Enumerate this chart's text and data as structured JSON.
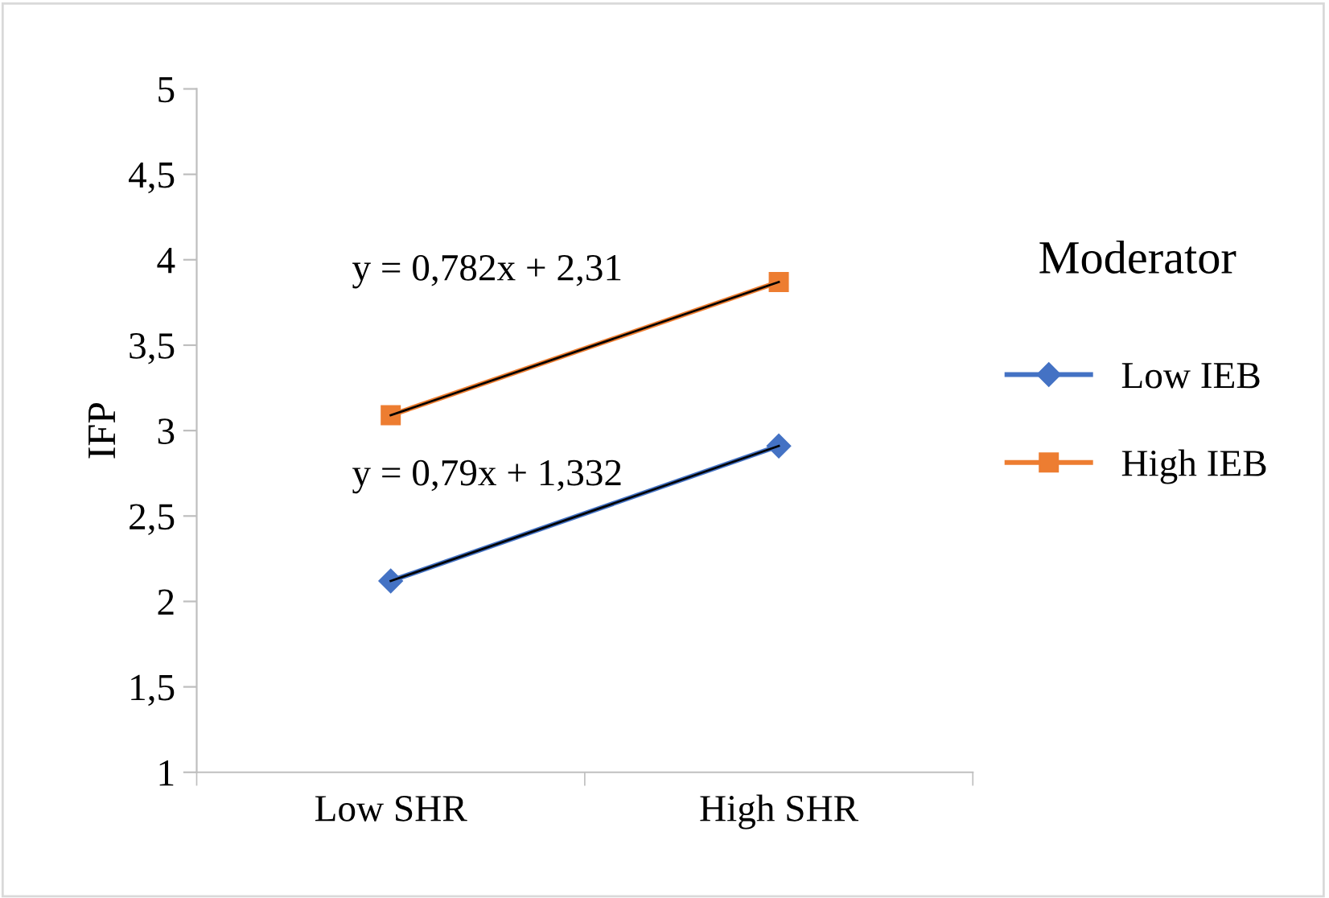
{
  "chart_data": {
    "type": "line",
    "ylabel": "IFP",
    "legend_title": "Moderator",
    "categories": [
      "Low SHR",
      "High SHR"
    ],
    "series": [
      {
        "name": "Low IEB",
        "color": "#4472c4",
        "marker": "diamond",
        "values": [
          2.12,
          2.91
        ]
      },
      {
        "name": "High IEB",
        "color": "#ed7d31",
        "marker": "square",
        "values": [
          3.09,
          3.87
        ]
      },
      {
        "color": "#000000",
        "marker": "none",
        "values": [
          2.12,
          2.91
        ]
      },
      {
        "color": "#000000",
        "marker": "none",
        "values": [
          3.09,
          3.87
        ]
      }
    ],
    "ylim": [
      1,
      5
    ],
    "yticks": [
      1,
      {
        "value": 1.5,
        "label": "1,5"
      },
      2,
      {
        "value": 2.5,
        "label": "2,5"
      },
      3,
      {
        "value": 3.5,
        "label": "3,5"
      },
      4,
      {
        "value": 4.5,
        "label": "4,5"
      },
      5
    ],
    "annotations": [
      "y = 0,782x + 2,31",
      "y = 0,79x + 1,332"
    ],
    "grid": false,
    "legend": "right",
    "line_style": "solid"
  }
}
